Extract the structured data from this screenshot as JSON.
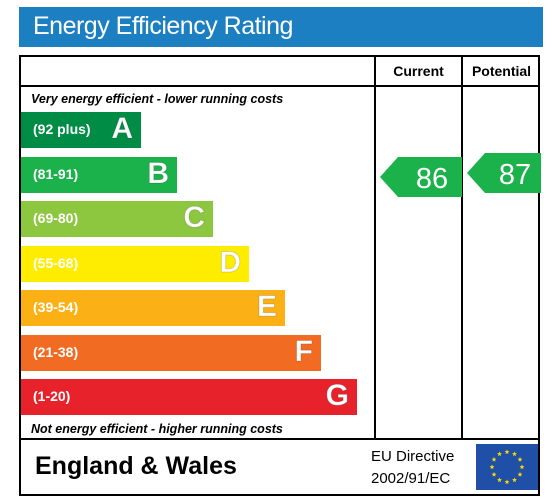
{
  "title": "Energy Efficiency Rating",
  "columns": {
    "current": "Current",
    "potential": "Potential"
  },
  "captions": {
    "top": "Very energy efficient - lower running costs",
    "bottom": "Not energy efficient - higher running costs"
  },
  "footer": {
    "region": "England & Wales",
    "directive_line1": "EU Directive",
    "directive_line2": "2002/91/EC",
    "flag_icon": "eu-flag-icon"
  },
  "colors": {
    "title_bar": "#1b7fc1",
    "eu_flag": "#1f4fa6",
    "eu_stars": "#ffdd00"
  },
  "chart_data": {
    "type": "bar",
    "categories": [
      "A",
      "B",
      "C",
      "D",
      "E",
      "F",
      "G"
    ],
    "ranges": [
      "(92 plus)",
      "(81-91)",
      "(69-80)",
      "(55-68)",
      "(39-54)",
      "(21-38)",
      "(1-20)"
    ],
    "colors": [
      "#008c44",
      "#1bb24b",
      "#8dc63f",
      "#ffed00",
      "#fbb116",
      "#f26b22",
      "#e8222a"
    ],
    "current": {
      "value": "86",
      "band": "B",
      "color": "#1bb24b"
    },
    "potential": {
      "value": "87",
      "band": "B",
      "color": "#1bb24b"
    }
  }
}
